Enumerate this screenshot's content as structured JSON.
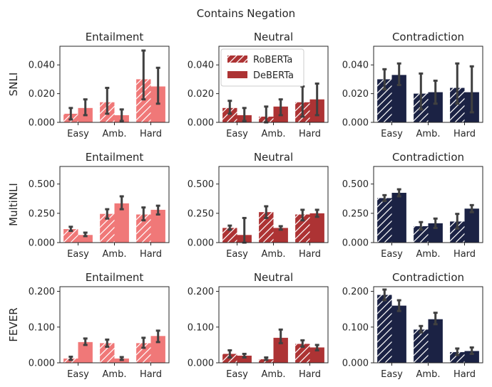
{
  "title": "Contains Negation",
  "colors": {
    "entailment": "#f07878",
    "neutral": "#ad3334",
    "contradiction": "#1b2244",
    "error": "#404040",
    "hatch": "#ffffff"
  },
  "legend": {
    "location": "upper-left of SNLI Neutral panel",
    "items": [
      {
        "label": "RoBERTa",
        "hatched": true
      },
      {
        "label": "DeBERTa",
        "hatched": false
      }
    ]
  },
  "chart_data": [
    {
      "type": "bar",
      "row": 0,
      "col": 0,
      "dataset": "SNLI",
      "title": "Entailment",
      "ylabel": "SNLI",
      "color_key": "entailment",
      "categories": [
        "Easy",
        "Amb.",
        "Hard"
      ],
      "ylim": [
        0,
        0.053
      ],
      "yticks": [
        "0.000",
        "0.020",
        "0.040"
      ],
      "ytick_values": [
        0,
        0.02,
        0.04
      ],
      "series": [
        {
          "name": "RoBERTa",
          "values": [
            0.006,
            0.014,
            0.03
          ],
          "err_low": [
            0.002,
            0.006,
            0.016
          ],
          "err_high": [
            0.01,
            0.024,
            0.05
          ]
        },
        {
          "name": "DeBERTa",
          "values": [
            0.01,
            0.005,
            0.025
          ],
          "err_low": [
            0.005,
            0.001,
            0.013
          ],
          "err_high": [
            0.016,
            0.009,
            0.038
          ]
        }
      ]
    },
    {
      "type": "bar",
      "row": 0,
      "col": 1,
      "dataset": "SNLI",
      "title": "Neutral",
      "ylabel": "",
      "color_key": "neutral",
      "categories": [
        "Easy",
        "Amb.",
        "Hard"
      ],
      "ylim": [
        0,
        0.053
      ],
      "yticks": [
        "0.000",
        "0.020",
        "0.040"
      ],
      "ytick_values": [
        0,
        0.02,
        0.04
      ],
      "series": [
        {
          "name": "RoBERTa",
          "values": [
            0.01,
            0.004,
            0.014
          ],
          "err_low": [
            0.006,
            0.0,
            0.004
          ],
          "err_high": [
            0.015,
            0.011,
            0.025
          ]
        },
        {
          "name": "DeBERTa",
          "values": [
            0.005,
            0.011,
            0.016
          ],
          "err_low": [
            0.001,
            0.005,
            0.005
          ],
          "err_high": [
            0.01,
            0.016,
            0.027
          ]
        }
      ]
    },
    {
      "type": "bar",
      "row": 0,
      "col": 2,
      "dataset": "SNLI",
      "title": "Contradiction",
      "ylabel": "",
      "color_key": "contradiction",
      "categories": [
        "Easy",
        "Amb.",
        "Hard"
      ],
      "ylim": [
        0,
        0.053
      ],
      "yticks": [
        "0.000",
        "0.020",
        "0.040"
      ],
      "ytick_values": [
        0,
        0.02,
        0.04
      ],
      "series": [
        {
          "name": "RoBERTa",
          "values": [
            0.03,
            0.02,
            0.024
          ],
          "err_low": [
            0.023,
            0.009,
            0.013
          ],
          "err_high": [
            0.037,
            0.034,
            0.041
          ]
        },
        {
          "name": "DeBERTa",
          "values": [
            0.033,
            0.021,
            0.021
          ],
          "err_low": [
            0.026,
            0.013,
            0.007
          ],
          "err_high": [
            0.041,
            0.029,
            0.039
          ]
        }
      ]
    },
    {
      "type": "bar",
      "row": 1,
      "col": 0,
      "dataset": "MultiNLI",
      "title": "Entailment",
      "ylabel": "MultiNLI",
      "color_key": "entailment",
      "categories": [
        "Easy",
        "Amb.",
        "Hard"
      ],
      "ylim": [
        0,
        0.65
      ],
      "yticks": [
        "0.000",
        "0.250",
        "0.500"
      ],
      "ytick_values": [
        0,
        0.25,
        0.5
      ],
      "series": [
        {
          "name": "RoBERTa",
          "values": [
            0.115,
            0.245,
            0.24
          ],
          "err_low": [
            0.1,
            0.205,
            0.19
          ],
          "err_high": [
            0.135,
            0.285,
            0.3
          ]
        },
        {
          "name": "DeBERTa",
          "values": [
            0.065,
            0.335,
            0.28
          ],
          "err_low": [
            0.055,
            0.285,
            0.24
          ],
          "err_high": [
            0.085,
            0.395,
            0.315
          ]
        }
      ]
    },
    {
      "type": "bar",
      "row": 1,
      "col": 1,
      "dataset": "MultiNLI",
      "title": "Neutral",
      "ylabel": "",
      "color_key": "neutral",
      "categories": [
        "Easy",
        "Amb.",
        "Hard"
      ],
      "ylim": [
        0,
        0.65
      ],
      "yticks": [
        "0.000",
        "0.250",
        "0.500"
      ],
      "ytick_values": [
        0,
        0.25,
        0.5
      ],
      "series": [
        {
          "name": "RoBERTa",
          "values": [
            0.125,
            0.26,
            0.24
          ],
          "err_low": [
            0.11,
            0.21,
            0.19
          ],
          "err_high": [
            0.145,
            0.31,
            0.28
          ]
        },
        {
          "name": "DeBERTa",
          "values": [
            0.065,
            0.125,
            0.25
          ],
          "err_low": [
            0.0,
            0.11,
            0.22
          ],
          "err_high": [
            0.21,
            0.14,
            0.28
          ]
        }
      ]
    },
    {
      "type": "bar",
      "row": 1,
      "col": 2,
      "dataset": "MultiNLI",
      "title": "Contradiction",
      "ylabel": "",
      "color_key": "contradiction",
      "categories": [
        "Easy",
        "Amb.",
        "Hard"
      ],
      "ylim": [
        0,
        0.65
      ],
      "yticks": [
        "0.000",
        "0.250",
        "0.500"
      ],
      "ytick_values": [
        0,
        0.25,
        0.5
      ],
      "series": [
        {
          "name": "RoBERTa",
          "values": [
            0.38,
            0.14,
            0.18
          ],
          "err_low": [
            0.355,
            0.11,
            0.12
          ],
          "err_high": [
            0.405,
            0.175,
            0.245
          ]
        },
        {
          "name": "DeBERTa",
          "values": [
            0.425,
            0.165,
            0.29
          ],
          "err_low": [
            0.395,
            0.125,
            0.26
          ],
          "err_high": [
            0.455,
            0.205,
            0.32
          ]
        }
      ]
    },
    {
      "type": "bar",
      "row": 2,
      "col": 0,
      "dataset": "FEVER",
      "title": "Entailment",
      "ylabel": "FEVER",
      "color_key": "entailment",
      "categories": [
        "Easy",
        "Amb.",
        "Hard"
      ],
      "ylim": [
        0,
        0.213
      ],
      "yticks": [
        "0.000",
        "0.100",
        "0.200"
      ],
      "ytick_values": [
        0,
        0.1,
        0.2
      ],
      "series": [
        {
          "name": "RoBERTa",
          "values": [
            0.012,
            0.055,
            0.055
          ],
          "err_low": [
            0.008,
            0.045,
            0.042
          ],
          "err_high": [
            0.017,
            0.065,
            0.07
          ]
        },
        {
          "name": "DeBERTa",
          "values": [
            0.058,
            0.012,
            0.075
          ],
          "err_low": [
            0.05,
            0.008,
            0.058
          ],
          "err_high": [
            0.068,
            0.016,
            0.09
          ]
        }
      ]
    },
    {
      "type": "bar",
      "row": 2,
      "col": 1,
      "dataset": "FEVER",
      "title": "Neutral",
      "ylabel": "",
      "color_key": "neutral",
      "categories": [
        "Easy",
        "Amb.",
        "Hard"
      ],
      "ylim": [
        0,
        0.213
      ],
      "yticks": [
        "0.000",
        "0.100",
        "0.200"
      ],
      "ytick_values": [
        0,
        0.1,
        0.2
      ],
      "series": [
        {
          "name": "RoBERTa",
          "values": [
            0.025,
            0.01,
            0.053
          ],
          "err_low": [
            0.015,
            0.008,
            0.045
          ],
          "err_high": [
            0.035,
            0.015,
            0.063
          ]
        },
        {
          "name": "DeBERTa",
          "values": [
            0.02,
            0.07,
            0.043
          ],
          "err_low": [
            0.015,
            0.055,
            0.035
          ],
          "err_high": [
            0.025,
            0.093,
            0.05
          ]
        }
      ]
    },
    {
      "type": "bar",
      "row": 2,
      "col": 2,
      "dataset": "FEVER",
      "title": "Contradiction",
      "ylabel": "",
      "color_key": "contradiction",
      "categories": [
        "Easy",
        "Amb.",
        "Hard"
      ],
      "ylim": [
        0,
        0.213
      ],
      "yticks": [
        "0.000",
        "0.100",
        "0.200"
      ],
      "ytick_values": [
        0,
        0.1,
        0.2
      ],
      "series": [
        {
          "name": "RoBERTa",
          "values": [
            0.19,
            0.093,
            0.03
          ],
          "err_low": [
            0.175,
            0.085,
            0.022
          ],
          "err_high": [
            0.205,
            0.103,
            0.04
          ]
        },
        {
          "name": "DeBERTa",
          "values": [
            0.16,
            0.122,
            0.033
          ],
          "err_low": [
            0.145,
            0.108,
            0.025
          ],
          "err_high": [
            0.175,
            0.14,
            0.043
          ]
        }
      ]
    }
  ]
}
